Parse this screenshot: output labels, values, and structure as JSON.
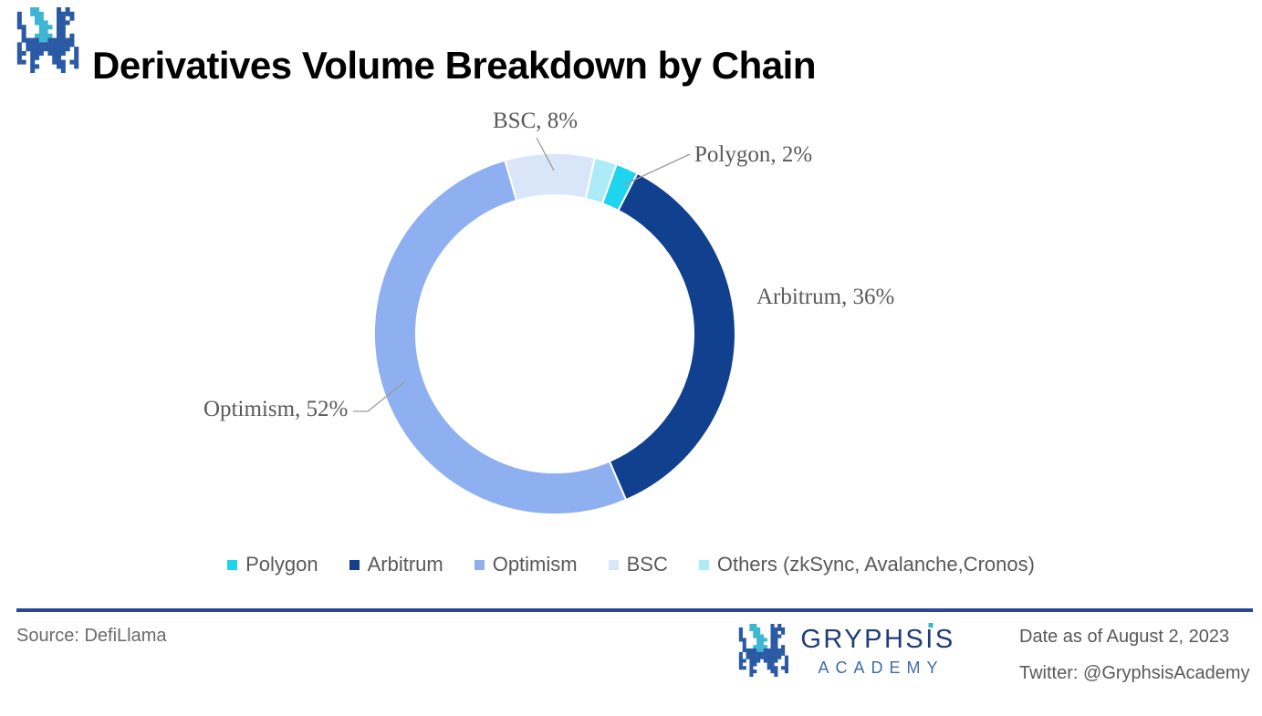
{
  "header": {
    "title": "Derivatives Volume Breakdown by Chain"
  },
  "chart_data": {
    "type": "pie",
    "subtype": "donut",
    "title": "Derivatives Volume Breakdown by Chain",
    "unit": "%",
    "categories": [
      "Polygon",
      "Arbitrum",
      "Optimism",
      "BSC",
      "Others (zkSync, Avalanche,Cronos)"
    ],
    "values": [
      2,
      36,
      52,
      8,
      2
    ],
    "start_angle_deg": 20,
    "donut_hole_ratio": 0.77,
    "legend_position": "bottom",
    "slices": [
      {
        "name": "Polygon",
        "value": 2,
        "color": "#1FD4EF",
        "label": "Polygon, 2%"
      },
      {
        "name": "Arbitrum",
        "value": 36,
        "color": "#11408E",
        "label": "Arbitrum, 36%"
      },
      {
        "name": "Optimism",
        "value": 52,
        "color": "#8FB0F0",
        "label": "Optimism, 52%"
      },
      {
        "name": "BSC",
        "value": 8,
        "color": "#D9E5F8",
        "label": "BSC, 8%"
      },
      {
        "name": "Others",
        "value": 2,
        "color": "#AEEBF8",
        "label": ""
      }
    ],
    "legend": [
      {
        "label": "Polygon",
        "color": "#1FD4EF"
      },
      {
        "label": "Arbitrum",
        "color": "#11408E"
      },
      {
        "label": "Optimism",
        "color": "#8FB0F0"
      },
      {
        "label": "BSC",
        "color": "#D9E5F8"
      },
      {
        "label": "Others (zkSync, Avalanche,Cronos)",
        "color": "#AEEBF8"
      }
    ]
  },
  "footer": {
    "source": "Source: DefiLlama",
    "date": "Date as of August 2, 2023",
    "twitter": "Twitter: @GryphsisAcademy",
    "brand": {
      "name_pre": "GRYPHS",
      "name_i": "I",
      "name_post": "S",
      "academy": "ACADEMY",
      "navy": "#1E3C78",
      "light_blue": "#3E6BA6"
    }
  },
  "colors": {
    "rule_line": "#2B4793",
    "label_text": "#595959",
    "leader_line": "#9B9B9B",
    "logo_blue": "#2B5AA5",
    "logo_cyan": "#3EB6D1"
  },
  "logo": {
    "blue": "#2B5AA5",
    "cyan": "#3EB6D1",
    "pixels": [
      "....CC....B.B...",
      ".B..CCC...BBBB..",
      ".B...CC...BB.B..",
      ".B...CCC..BBB...",
      ".BB...CCC.BB....",
      "..B...CC..BB....",
      "..B..CCCC.BB.B..",
      "..BBBBCCBBBBBB..",
      ".B.BBBBBBBBBBB..",
      ".B.BBBBBBBBBB.B.",
      ".BB.BBB.BBBB..B.",
      ".B..BB...BB...B.",
      ".BB.B....BBB.BB.",
      "....BB....BB..B.",
      "....B......B...."
    ]
  }
}
